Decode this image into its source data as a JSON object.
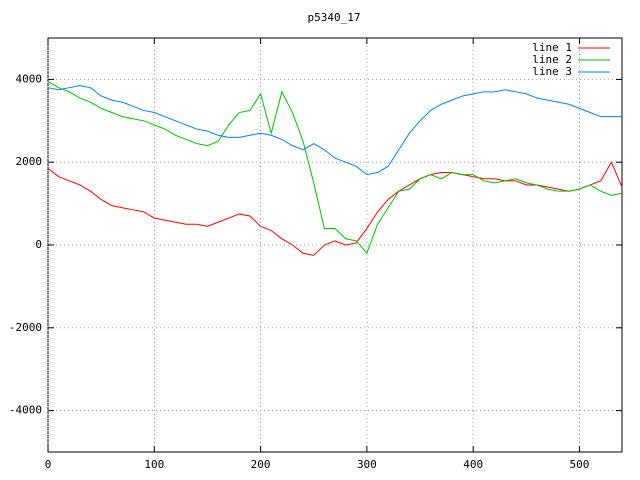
{
  "chart_data": {
    "type": "line",
    "title": "p5340_17",
    "x": [
      0,
      10,
      20,
      30,
      40,
      50,
      60,
      70,
      80,
      90,
      100,
      110,
      120,
      130,
      140,
      150,
      160,
      170,
      180,
      190,
      200,
      210,
      220,
      230,
      240,
      250,
      260,
      270,
      280,
      290,
      300,
      310,
      320,
      330,
      340,
      350,
      360,
      370,
      380,
      390,
      400,
      410,
      420,
      430,
      440,
      450,
      460,
      470,
      480,
      490,
      500,
      510,
      520,
      530,
      540
    ],
    "series": [
      {
        "name": "line 1",
        "color": "#ff0000",
        "values": [
          1850,
          1650,
          1550,
          1450,
          1300,
          1100,
          950,
          900,
          850,
          800,
          650,
          600,
          550,
          500,
          500,
          450,
          550,
          650,
          750,
          700,
          450,
          350,
          150,
          0,
          -200,
          -250,
          0,
          100,
          0,
          50,
          400,
          800,
          1100,
          1300,
          1450,
          1600,
          1700,
          1750,
          1750,
          1700,
          1650,
          1600,
          1600,
          1550,
          1550,
          1450,
          1450,
          1400,
          1350,
          1300,
          1350,
          1450,
          1550,
          2000,
          1400
        ]
      },
      {
        "name": "line 2",
        "color": "#00c000",
        "values": [
          3950,
          3800,
          3700,
          3550,
          3450,
          3300,
          3200,
          3100,
          3050,
          3000,
          2900,
          2800,
          2650,
          2550,
          2450,
          2400,
          2500,
          2900,
          3200,
          3250,
          3650,
          2700,
          3700,
          3200,
          2500,
          1500,
          400,
          400,
          150,
          100,
          -200,
          500,
          900,
          1300,
          1350,
          1600,
          1700,
          1600,
          1750,
          1700,
          1700,
          1550,
          1500,
          1550,
          1600,
          1500,
          1450,
          1350,
          1300,
          1300,
          1350,
          1450,
          1300,
          1200,
          1250
        ]
      },
      {
        "name": "line 3",
        "color": "#0080ff",
        "values": [
          3800,
          3750,
          3800,
          3850,
          3800,
          3600,
          3500,
          3450,
          3350,
          3250,
          3200,
          3100,
          3000,
          2900,
          2800,
          2750,
          2650,
          2600,
          2600,
          2650,
          2700,
          2650,
          2550,
          2400,
          2300,
          2450,
          2300,
          2100,
          2000,
          1900,
          1700,
          1750,
          1900,
          2300,
          2700,
          3000,
          3250,
          3400,
          3500,
          3600,
          3650,
          3700,
          3700,
          3750,
          3700,
          3650,
          3550,
          3500,
          3450,
          3400,
          3300,
          3200,
          3100,
          3100,
          3100
        ]
      }
    ],
    "xlim": [
      0,
      540
    ],
    "ylim": [
      -5000,
      5000
    ],
    "xticks": [
      0,
      100,
      200,
      300,
      400,
      500
    ],
    "yticks": [
      -4000,
      -2000,
      0,
      2000,
      4000
    ],
    "grid": true,
    "legend": "top-right"
  }
}
